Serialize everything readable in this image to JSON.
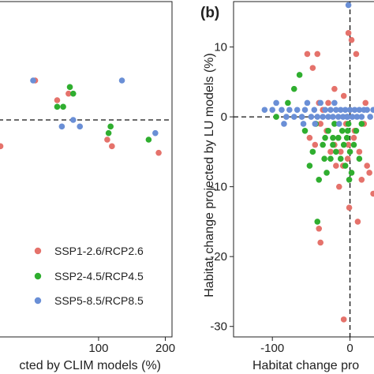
{
  "colors": {
    "ssp1": "#e5726b",
    "ssp2": "#2fae2f",
    "ssp5": "#6a8fd6",
    "axis": "#222222",
    "dashed": "#111111"
  },
  "legend_labels": [
    "SSP1-2.6/RCP2.6",
    "SSP2-4.5/RCP4.5",
    "SSP5-8.5/RCP8.5"
  ],
  "chart_data": [
    {
      "panel": "a",
      "type": "scatter",
      "xlabel": "cted by CLIM models (%)",
      "xticks": [
        100,
        200
      ],
      "xlim": [
        -50,
        210
      ],
      "ylim": [
        -33,
        18
      ],
      "ref_y": 0,
      "legend_position": "bottom-right",
      "series": [
        {
          "name": "SSP1-2.6/RCP2.6",
          "color_key": "ssp1",
          "points": [
            [
              -47,
              -4
            ],
            [
              5,
              6
            ],
            [
              38,
              3
            ],
            [
              55,
              4
            ],
            [
              113,
              -3
            ],
            [
              120,
              -4
            ],
            [
              190,
              -5
            ]
          ]
        },
        {
          "name": "SSP2-4.5/RCP4.5",
          "color_key": "ssp2",
          "points": [
            [
              38,
              2
            ],
            [
              47,
              2
            ],
            [
              57,
              5
            ],
            [
              62,
              4
            ],
            [
              115,
              -2
            ],
            [
              118,
              -1
            ],
            [
              175,
              -3
            ]
          ]
        },
        {
          "name": "SSP5-8.5/RCP8.5",
          "color_key": "ssp5",
          "points": [
            [
              2,
              6
            ],
            [
              45,
              -1
            ],
            [
              62,
              0
            ],
            [
              72,
              -1
            ],
            [
              135,
              6
            ],
            [
              185,
              -2
            ]
          ]
        }
      ]
    },
    {
      "panel": "b",
      "panel_label": "(b)",
      "type": "scatter",
      "xlabel": "Habitat change pro",
      "ylabel": "Habitat change projected by LU models (%)",
      "xticks": [
        -100,
        0
      ],
      "yticks": [
        10,
        0,
        -10,
        -20,
        -30
      ],
      "xlim": [
        -150,
        35
      ],
      "ylim": [
        -31.5,
        16.5
      ],
      "ref_x": 0,
      "ref_y": 0,
      "series": [
        {
          "name": "SSP1-2.6/RCP2.6",
          "color_key": "ssp1",
          "points": [
            [
              -55,
              9
            ],
            [
              -48,
              7
            ],
            [
              -42,
              9
            ],
            [
              -40,
              2
            ],
            [
              -38,
              -1
            ],
            [
              -52,
              -3
            ],
            [
              -45,
              -4
            ],
            [
              -30,
              -2
            ],
            [
              -28,
              2
            ],
            [
              -20,
              4
            ],
            [
              -15,
              -3
            ],
            [
              -12,
              -5
            ],
            [
              -5,
              -1
            ],
            [
              -8,
              3
            ],
            [
              -2,
              -4
            ],
            [
              -9,
              -7
            ],
            [
              -18,
              -7
            ],
            [
              -25,
              -5
            ],
            [
              5,
              -3
            ],
            [
              12,
              -5
            ],
            [
              15,
              -9
            ],
            [
              18,
              -1
            ],
            [
              22,
              -7
            ],
            [
              -2,
              12
            ],
            [
              2,
              11
            ],
            [
              8,
              9
            ],
            [
              -1,
              -13
            ],
            [
              -14,
              -10
            ],
            [
              -40,
              -16
            ],
            [
              -38,
              -18
            ],
            [
              -8,
              -29
            ],
            [
              10,
              -15
            ],
            [
              25,
              -8
            ],
            [
              30,
              -11
            ],
            [
              20,
              2
            ],
            [
              6,
              -2
            ],
            [
              -35,
              1
            ],
            [
              -20,
              -4
            ],
            [
              -3,
              -6
            ]
          ]
        },
        {
          "name": "SSP2-4.5/RCP4.5",
          "color_key": "ssp2",
          "points": [
            [
              -95,
              0
            ],
            [
              -80,
              2
            ],
            [
              -72,
              4
            ],
            [
              -65,
              6
            ],
            [
              -58,
              -2
            ],
            [
              -52,
              -7
            ],
            [
              -48,
              -5
            ],
            [
              -44,
              -1
            ],
            [
              -40,
              -9
            ],
            [
              -35,
              -4
            ],
            [
              -32,
              -3
            ],
            [
              -30,
              -8
            ],
            [
              -28,
              -2
            ],
            [
              -25,
              -6
            ],
            [
              -22,
              -4
            ],
            [
              -20,
              -1
            ],
            [
              -18,
              -5
            ],
            [
              -15,
              -3
            ],
            [
              -12,
              -6
            ],
            [
              -10,
              -2
            ],
            [
              -8,
              -4
            ],
            [
              -6,
              -7
            ],
            [
              -4,
              -3
            ],
            [
              -2,
              -1
            ],
            [
              0,
              -5
            ],
            [
              -1,
              -9
            ],
            [
              -3,
              -2
            ],
            [
              5,
              -4
            ],
            [
              8,
              -2
            ],
            [
              12,
              -6
            ],
            [
              15,
              -1
            ],
            [
              -42,
              -15
            ],
            [
              2,
              -8
            ],
            [
              -22,
              -3
            ],
            [
              -33,
              -6
            ]
          ]
        },
        {
          "name": "SSP5-8.5/RCP8.5",
          "color_key": "ssp5",
          "points": [
            [
              -110,
              1
            ],
            [
              -100,
              1
            ],
            [
              -95,
              2
            ],
            [
              -88,
              1
            ],
            [
              -82,
              0
            ],
            [
              -78,
              1
            ],
            [
              -72,
              0
            ],
            [
              -68,
              1
            ],
            [
              -62,
              0
            ],
            [
              -58,
              1
            ],
            [
              -55,
              2
            ],
            [
              -50,
              0
            ],
            [
              -46,
              1
            ],
            [
              -42,
              0
            ],
            [
              -38,
              2
            ],
            [
              -35,
              0
            ],
            [
              -32,
              1
            ],
            [
              -28,
              0
            ],
            [
              -25,
              1
            ],
            [
              -22,
              0
            ],
            [
              -18,
              1
            ],
            [
              -15,
              0
            ],
            [
              -12,
              1
            ],
            [
              -9,
              0
            ],
            [
              -6,
              1
            ],
            [
              -3,
              0
            ],
            [
              0,
              1
            ],
            [
              3,
              0
            ],
            [
              6,
              1
            ],
            [
              9,
              0
            ],
            [
              12,
              1
            ],
            [
              15,
              0
            ],
            [
              18,
              1
            ],
            [
              22,
              1
            ],
            [
              26,
              0
            ],
            [
              30,
              1
            ],
            [
              -2,
              16
            ],
            [
              -4,
              0
            ],
            [
              -20,
              2
            ],
            [
              -45,
              -1
            ],
            [
              -60,
              -1
            ],
            [
              -85,
              -1
            ],
            [
              -14,
              -1
            ]
          ]
        }
      ]
    }
  ]
}
